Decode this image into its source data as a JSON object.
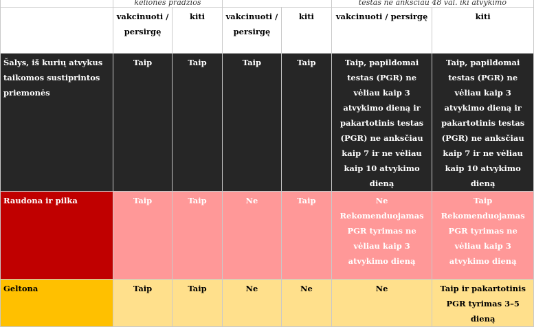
{
  "header": {
    "top": {
      "col_a": "keliones pradžios",
      "col_c": "testas ne anksčiau 48 val. iki atvykimo"
    },
    "sub": [
      "vakcinuoti / persirgę",
      "kiti",
      "vakcinuoti / persirgę",
      "kiti",
      "vakcinuoti / persirgę",
      "kiti"
    ]
  },
  "rows": [
    {
      "label": "Šalys, iš kurių atvykus taikomos sustiprintos priemonės",
      "cells": [
        "Taip",
        "Taip",
        "Taip",
        "Taip",
        "Taip, papildomai testas (PGR) ne vėliau kaip 3 atvykimo dieną ir pakartotinis testas (PGR) ne anksčiau kaip 7 ir ne vėliau kaip 10 atvykimo dieną",
        "Taip, papildomai testas (PGR) ne vėliau kaip 3 atvykimo dieną ir pakartotinis testas (PGR) ne anksčiau kaip 7 ir ne vėliau kaip 10 atvykimo dieną"
      ]
    },
    {
      "label": "Raudona ir pilka",
      "cells": [
        "Taip",
        "Taip",
        "Ne",
        "Taip",
        "Ne Rekomenduojamas PGR tyrimas ne vėliau kaip 3 atvykimo dieną",
        "Taip Rekomenduojamas PGR tyrimas ne vėliau kaip 3 atvykimo dieną"
      ]
    },
    {
      "label": "Geltona",
      "cells": [
        "Taip",
        "Taip",
        "Ne",
        "Ne",
        "Ne",
        "Taip ir pakartotinis PGR tyrimas 3–5 dieną"
      ]
    }
  ]
}
